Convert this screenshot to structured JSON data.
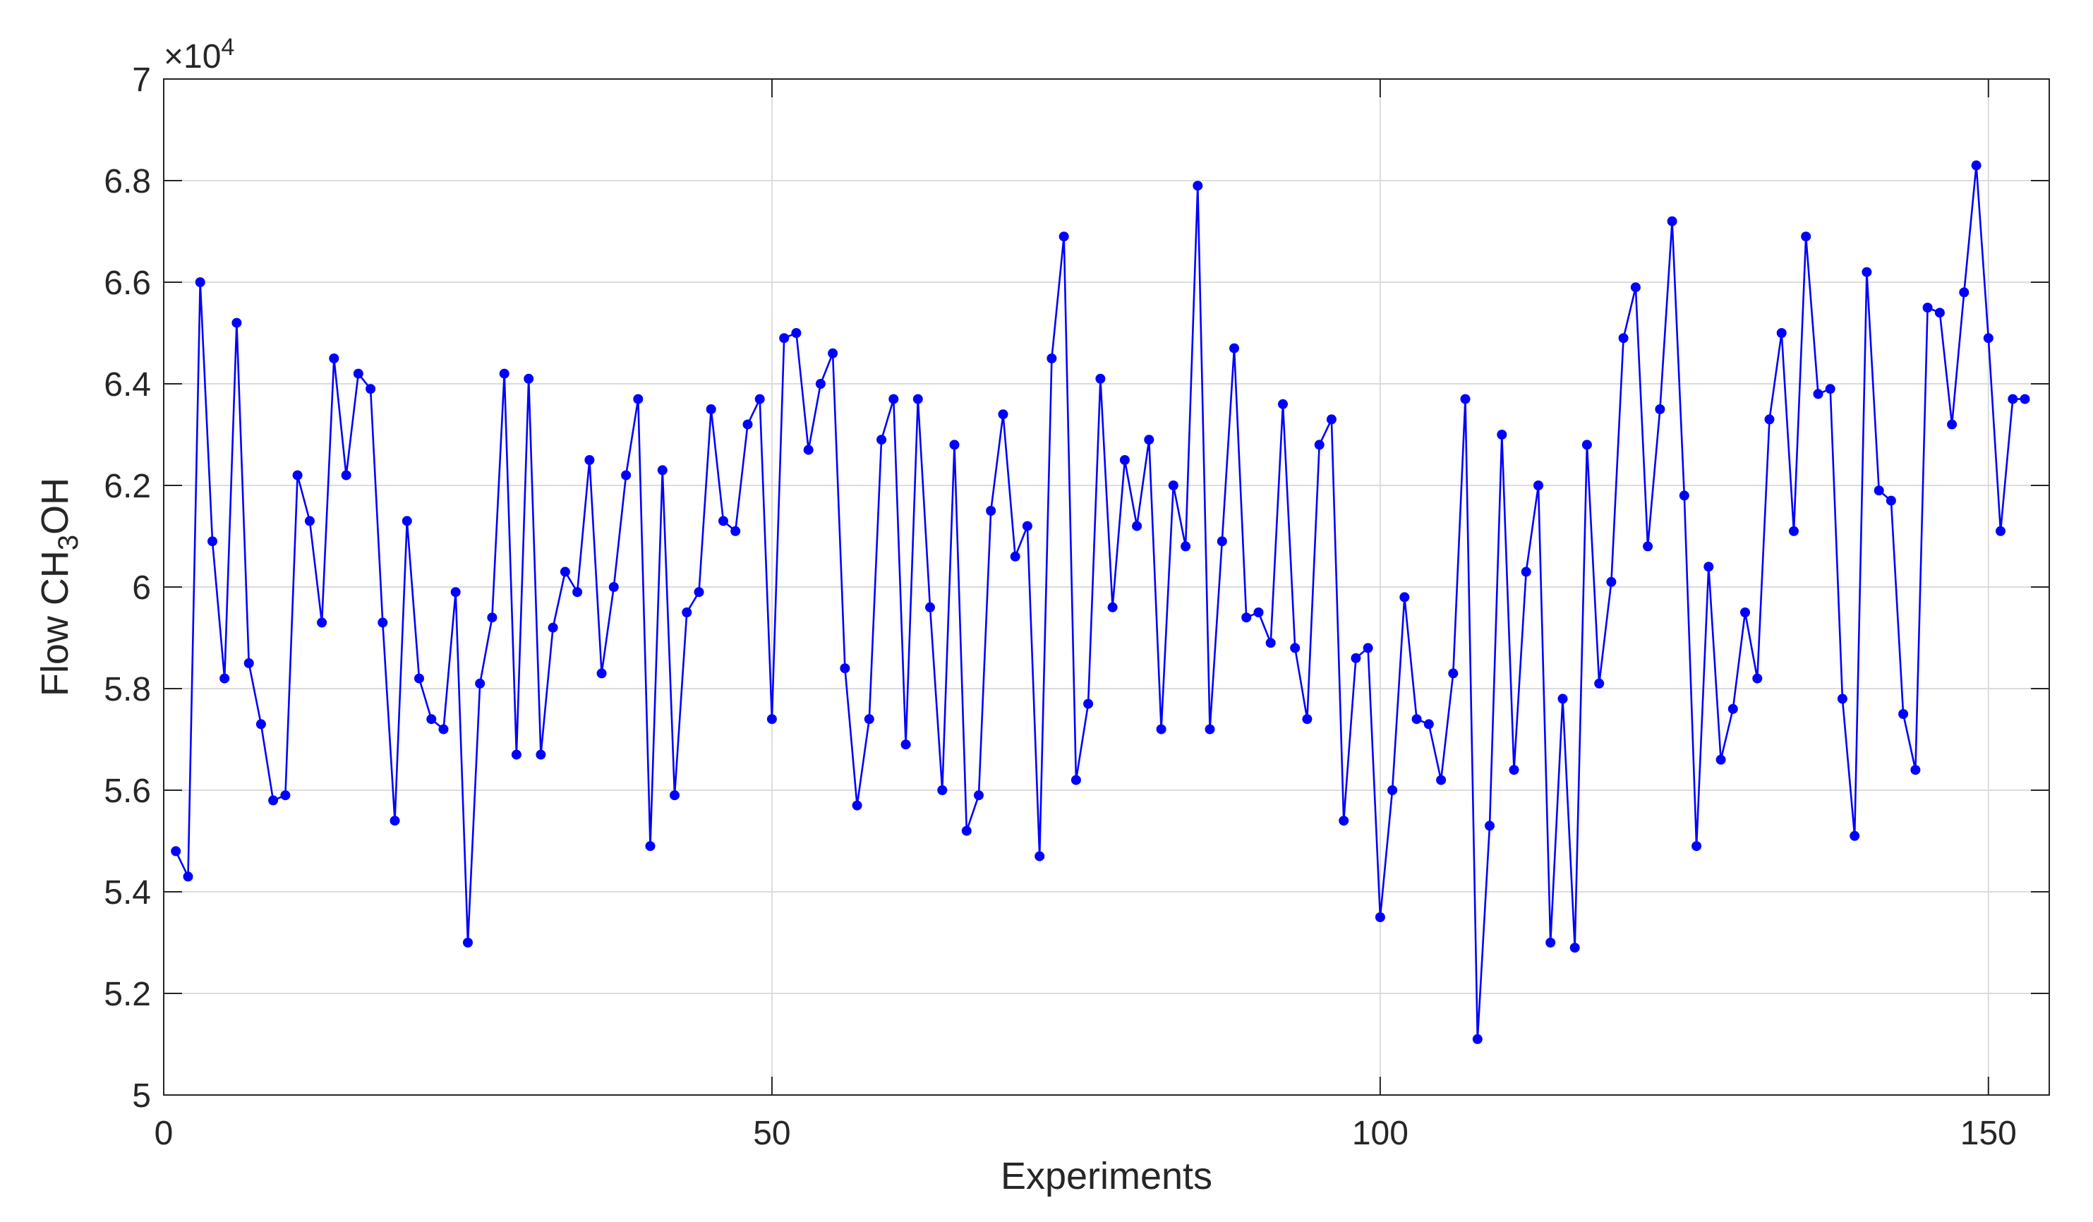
{
  "chart_data": {
    "type": "line",
    "xlabel": "Experiments",
    "ylabel_main": "Flow CH",
    "ylabel_sub": "3",
    "ylabel_tail": "OH",
    "y_exponent_prefix": "×10",
    "y_exponent": "4",
    "xlim": [
      0,
      155
    ],
    "ylim": [
      5,
      7
    ],
    "x_ticks": [
      0,
      50,
      100,
      150
    ],
    "x_tick_labels": [
      "0",
      "50",
      "100",
      "150"
    ],
    "y_ticks": [
      5,
      5.2,
      5.4,
      5.6,
      5.8,
      6,
      6.2,
      6.4,
      6.6,
      6.8,
      7
    ],
    "y_tick_labels": [
      "5",
      "5.2",
      "5.4",
      "5.6",
      "5.8",
      "6",
      "6.2",
      "6.4",
      "6.6",
      "6.8",
      "7"
    ],
    "grid": true,
    "line_color": "#0000ff",
    "series": [
      {
        "x": [
          1,
          2,
          3,
          4,
          5,
          6,
          7,
          8,
          9,
          10,
          11,
          12,
          13,
          14,
          15,
          16,
          17,
          18,
          19,
          20,
          21,
          22,
          23,
          24,
          25,
          26,
          27,
          28,
          29,
          30,
          31,
          32,
          33,
          34,
          35,
          36,
          37,
          38,
          39,
          40,
          41,
          42,
          43,
          44,
          45,
          46,
          47,
          48,
          49,
          50,
          51,
          52,
          53,
          54,
          55,
          56,
          57,
          58,
          59,
          60,
          61,
          62,
          63,
          64,
          65,
          66,
          67,
          68,
          69,
          70,
          71,
          72,
          73,
          74,
          75,
          76,
          77,
          78,
          79,
          80,
          81,
          82,
          83,
          84,
          85,
          86,
          87,
          88,
          89,
          90,
          91,
          92,
          93,
          94,
          95,
          96,
          97,
          98,
          99,
          100,
          101,
          102,
          103,
          104,
          105,
          106,
          107,
          108,
          109,
          110,
          111,
          112,
          113,
          114,
          115,
          116,
          117,
          118,
          119,
          120,
          121,
          122,
          123,
          124,
          125,
          126,
          127,
          128,
          129,
          130,
          131,
          132,
          133,
          134,
          135,
          136,
          137,
          138,
          139,
          140,
          141,
          142,
          143,
          144,
          145,
          146,
          147,
          148,
          149,
          150,
          151,
          152,
          153
        ],
        "y": [
          5.48,
          5.43,
          6.6,
          6.09,
          5.82,
          6.52,
          5.85,
          5.73,
          5.58,
          5.59,
          6.22,
          6.13,
          5.93,
          6.45,
          6.22,
          6.42,
          6.39,
          5.93,
          5.54,
          6.13,
          5.82,
          5.74,
          5.72,
          5.99,
          5.3,
          5.81,
          5.94,
          6.42,
          5.67,
          6.41,
          5.67,
          5.92,
          6.03,
          5.99,
          6.25,
          5.83,
          6.0,
          6.22,
          6.37,
          5.49,
          6.23,
          5.59,
          5.95,
          5.99,
          6.35,
          6.13,
          6.11,
          6.32,
          6.37,
          5.74,
          6.49,
          6.5,
          6.27,
          6.4,
          6.46,
          5.84,
          5.57,
          5.74,
          6.29,
          6.37,
          5.69,
          6.37,
          5.96,
          5.6,
          6.28,
          5.52,
          5.59,
          6.15,
          6.34,
          6.06,
          6.12,
          5.47,
          6.45,
          6.69,
          5.62,
          5.77,
          6.41,
          5.96,
          6.25,
          6.12,
          6.29,
          5.72,
          6.2,
          6.08,
          6.79,
          5.72,
          6.09,
          6.47,
          5.94,
          5.95,
          5.89,
          6.36,
          5.88,
          5.74,
          6.28,
          6.33,
          5.54,
          5.86,
          5.88,
          5.35,
          5.6,
          5.98,
          5.74,
          5.73,
          5.62,
          5.83,
          6.37,
          5.11,
          5.53,
          6.3,
          5.64,
          6.03,
          6.2,
          5.3,
          5.78,
          5.29,
          6.28,
          5.81,
          6.01,
          6.49,
          6.59,
          6.08,
          6.35,
          6.72,
          6.18,
          5.49,
          6.04,
          5.66,
          5.76,
          5.95,
          5.82,
          6.33,
          6.5,
          6.11,
          6.69,
          6.38,
          6.39,
          5.78,
          5.51,
          6.62,
          6.19,
          6.17,
          5.75,
          5.64,
          6.55,
          6.54,
          6.32,
          6.58,
          6.83,
          6.49,
          6.11,
          6.37,
          6.37
        ]
      }
    ]
  }
}
